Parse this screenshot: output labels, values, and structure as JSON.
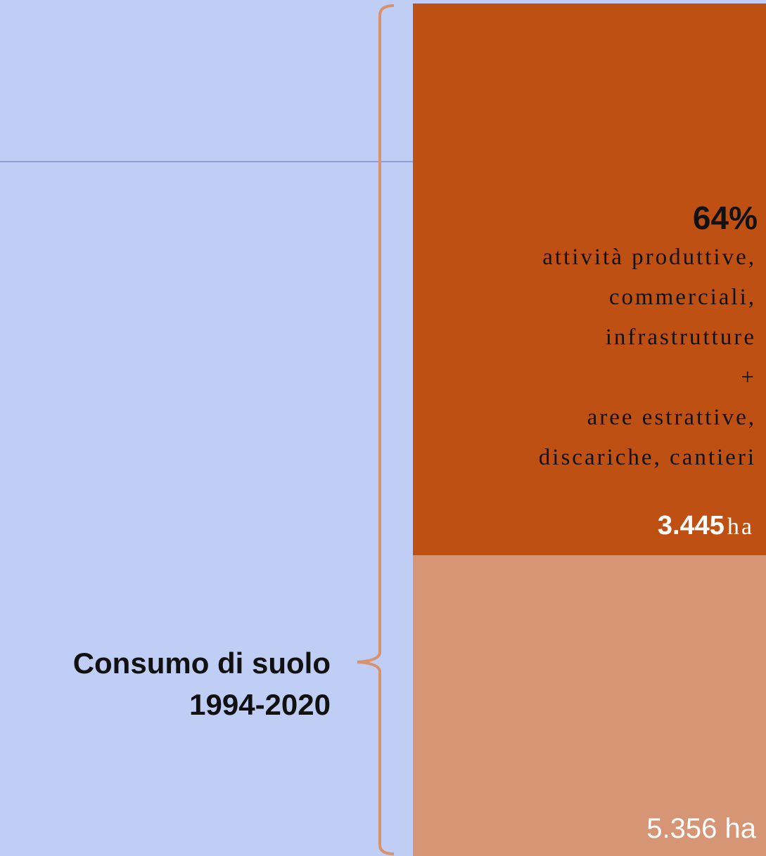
{
  "label": {
    "lines": [
      "Consumo di suolo",
      "1994-2020"
    ]
  },
  "segments": [
    {
      "percent": "64%",
      "description": [
        "attività produttive,",
        "commerciali,",
        "infrastrutture",
        "+",
        "aree estrattive,",
        "discariche, cantieri"
      ],
      "value": "3.445",
      "unit": "ha"
    },
    {
      "value": "5.356",
      "unit": "ha"
    }
  ]
}
